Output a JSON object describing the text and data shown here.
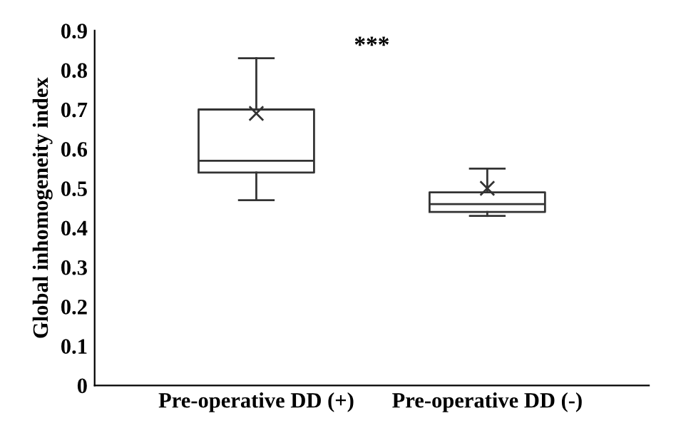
{
  "chart_data": {
    "type": "box",
    "ylabel": "Global inhomogeneity index",
    "categories": [
      "Pre-operative DD (+)",
      "Pre-operative DD (-)"
    ],
    "boxes": [
      {
        "low": 0.47,
        "q1": 0.54,
        "median": 0.57,
        "q3": 0.7,
        "high": 0.83,
        "mean": 0.69
      },
      {
        "low": 0.43,
        "q1": 0.44,
        "median": 0.46,
        "q3": 0.49,
        "high": 0.55,
        "mean": 0.5
      }
    ],
    "ylim": [
      0,
      0.9
    ],
    "yticks": [
      0,
      0.1,
      0.2,
      0.3,
      0.4,
      0.5,
      0.6,
      0.7,
      0.8,
      0.9
    ],
    "annotations": [
      "***"
    ],
    "grid": false
  }
}
